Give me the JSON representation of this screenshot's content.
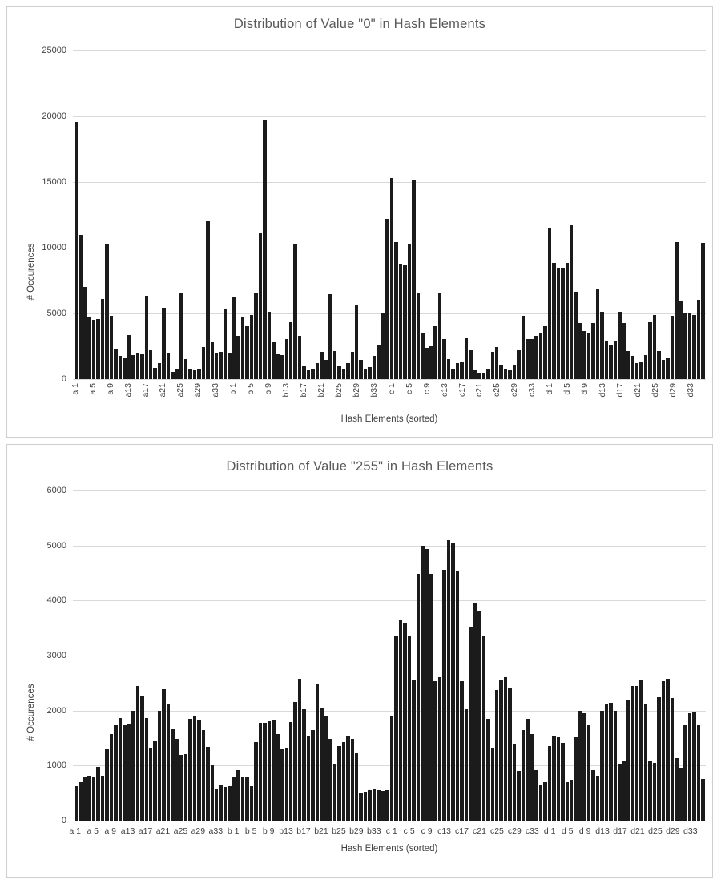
{
  "page": {
    "background": "#ffffff"
  },
  "colors": {
    "bar": "#1b1b1b",
    "gridline": "#d9d9d9",
    "axis_text": "#404040",
    "title_text": "#595959",
    "panel_border": "#cfcfcf"
  },
  "chart_data": [
    {
      "type": "bar",
      "title": "Distribution of Value \"0\" in Hash Elements",
      "xlabel": "Hash Elements (sorted)",
      "ylabel": "# Occurences",
      "ylim": [
        0,
        25000
      ],
      "ytick_step": 5000,
      "grid": true,
      "legend": false,
      "tick_every": 4,
      "x_labels_rotated": true,
      "x_tick_labels": [
        "a 1",
        "a 5",
        "a 9",
        "a13",
        "a17",
        "a21",
        "a25",
        "a29",
        "a33",
        "b 1",
        "b 5",
        "b 9",
        "b13",
        "b17",
        "b21",
        "b25",
        "b29",
        "b33",
        "c 1",
        "c 5",
        "c 9",
        "c13",
        "c17",
        "c21",
        "c25",
        "c29",
        "c33",
        "d 1",
        "d 5",
        "d 9",
        "d13",
        "d17",
        "d21",
        "d25",
        "d29",
        "d33"
      ],
      "values": [
        19600,
        11000,
        7000,
        4750,
        4500,
        4600,
        6100,
        10250,
        4800,
        2250,
        1750,
        1600,
        3350,
        1850,
        2000,
        1900,
        6350,
        2200,
        850,
        1250,
        5400,
        1950,
        550,
        750,
        6600,
        1550,
        750,
        700,
        800,
        2450,
        12000,
        2800,
        2000,
        2050,
        5300,
        1950,
        6300,
        3300,
        4700,
        4000,
        4900,
        6500,
        11100,
        19700,
        5150,
        2800,
        1900,
        1850,
        3050,
        4300,
        10250,
        3300,
        1000,
        700,
        750,
        1200,
        2100,
        1450,
        6450,
        2150,
        950,
        800,
        1250,
        2100,
        5650,
        1450,
        800,
        900,
        1750,
        2650,
        5000,
        12200,
        15300,
        10400,
        8750,
        8650,
        10250,
        15100,
        6500,
        3450,
        2350,
        2500,
        4000,
        6500,
        3050,
        1500,
        800,
        1200,
        1300,
        3100,
        2200,
        700,
        400,
        500,
        800,
        2100,
        2450,
        1100,
        800,
        700,
        1100,
        2200,
        4800,
        3050,
        3050,
        3300,
        3450,
        4000,
        11500,
        8850,
        8500,
        8500,
        8850,
        11700,
        6650,
        4250,
        3650,
        3500,
        4250,
        6900,
        5100,
        2950,
        2550,
        2900,
        5100,
        4250,
        2150,
        1750,
        1250,
        1300,
        1850,
        4300,
        4850,
        2150,
        1450,
        1600,
        4800,
        10400,
        5950,
        5000,
        5000,
        4850,
        6050,
        10350
      ]
    },
    {
      "type": "bar",
      "title": "Distribution of Value \"255\" in Hash Elements",
      "xlabel": "Hash Elements (sorted)",
      "ylabel": "# Occurences",
      "ylim": [
        0,
        6000
      ],
      "ytick_step": 1000,
      "grid": true,
      "legend": false,
      "tick_every": 4,
      "x_labels_rotated": false,
      "x_tick_labels": [
        "a 1",
        "a 5",
        "a 9",
        "a13",
        "a17",
        "a21",
        "a25",
        "a29",
        "a33",
        "b 1",
        "b 5",
        "b 9",
        "b13",
        "b17",
        "b21",
        "b25",
        "b29",
        "b33",
        "c 1",
        "c 5",
        "c 9",
        "c13",
        "c17",
        "c21",
        "c25",
        "c29",
        "c33",
        "d 1",
        "d 5",
        "d 9",
        "d13",
        "d17",
        "d21",
        "d25",
        "d29",
        "d33"
      ],
      "values": [
        630,
        700,
        800,
        810,
        790,
        970,
        820,
        1300,
        1570,
        1740,
        1870,
        1730,
        1760,
        2000,
        2440,
        2270,
        1870,
        1330,
        1460,
        2000,
        2390,
        2110,
        1680,
        1480,
        1190,
        1210,
        1850,
        1900,
        1830,
        1650,
        1340,
        1010,
        590,
        640,
        610,
        620,
        780,
        920,
        780,
        780,
        630,
        1430,
        1770,
        1780,
        1800,
        1840,
        1580,
        1290,
        1330,
        1790,
        2160,
        2580,
        2020,
        1550,
        1640,
        2470,
        2050,
        1890,
        1480,
        1040,
        1360,
        1430,
        1550,
        1480,
        1240,
        490,
        530,
        560,
        580,
        560,
        540,
        560,
        1890,
        3370,
        3640,
        3600,
        3360,
        2550,
        4490,
        5000,
        4940,
        4490,
        2530,
        2600,
        4560,
        5100,
        5060,
        4550,
        2530,
        2020,
        3520,
        3940,
        3810,
        3370,
        1850,
        1330,
        2380,
        2550,
        2610,
        2400,
        1400,
        900,
        1650,
        1845,
        1580,
        920,
        650,
        700,
        1360,
        1550,
        1515,
        1410,
        705,
        750,
        1525,
        2000,
        1950,
        1750,
        920,
        810,
        1990,
        2105,
        2135,
        1995,
        1040,
        1090,
        2180,
        2450,
        2450,
        2550,
        2130,
        1085,
        1050,
        2240,
        2540,
        2580,
        2230,
        1130,
        960,
        1740,
        1945,
        1980,
        1750,
        760
      ]
    }
  ]
}
